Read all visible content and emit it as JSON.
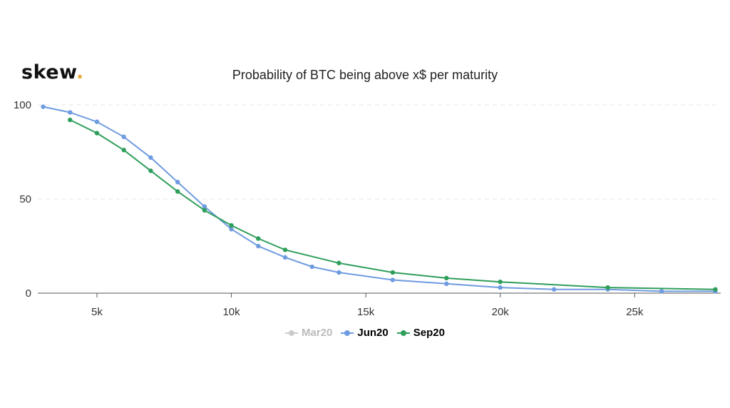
{
  "logo": {
    "text": "skew",
    "dot": "."
  },
  "chart_data": {
    "type": "line",
    "title": "Probability of BTC being above x$ per maturity",
    "xlabel": "",
    "ylabel": "",
    "xlim": [
      2800,
      28200
    ],
    "ylim": [
      0,
      100
    ],
    "x_ticks": [
      5000,
      10000,
      15000,
      20000,
      25000
    ],
    "x_tick_labels": [
      "5k",
      "10k",
      "15k",
      "20k",
      "25k"
    ],
    "y_ticks": [
      0,
      50,
      100
    ],
    "y_tick_labels": [
      "0",
      "50",
      "100"
    ],
    "grid": "horizontal dashed",
    "legend_position": "bottom",
    "series": [
      {
        "name": "Mar20",
        "color": "#cccccc",
        "visible": false,
        "points": []
      },
      {
        "name": "Jun20",
        "color": "#6f9be0",
        "visible": true,
        "points": [
          [
            3000,
            99
          ],
          [
            4000,
            96
          ],
          [
            5000,
            91
          ],
          [
            6000,
            83
          ],
          [
            7000,
            72
          ],
          [
            8000,
            59
          ],
          [
            9000,
            46
          ],
          [
            10000,
            34
          ],
          [
            11000,
            25
          ],
          [
            12000,
            19
          ],
          [
            13000,
            14
          ],
          [
            14000,
            11
          ],
          [
            16000,
            7
          ],
          [
            18000,
            5
          ],
          [
            20000,
            3
          ],
          [
            22000,
            2
          ],
          [
            24000,
            2
          ],
          [
            26000,
            1
          ],
          [
            28000,
            1
          ]
        ]
      },
      {
        "name": "Sep20",
        "color": "#2e9e5b",
        "visible": true,
        "points": [
          [
            4000,
            92
          ],
          [
            5000,
            85
          ],
          [
            6000,
            76
          ],
          [
            7000,
            65
          ],
          [
            8000,
            54
          ],
          [
            9000,
            44
          ],
          [
            10000,
            36
          ],
          [
            11000,
            29
          ],
          [
            12000,
            23
          ],
          [
            14000,
            16
          ],
          [
            16000,
            11
          ],
          [
            18000,
            8
          ],
          [
            20000,
            6
          ],
          [
            24000,
            3
          ],
          [
            28000,
            2
          ]
        ]
      }
    ]
  }
}
